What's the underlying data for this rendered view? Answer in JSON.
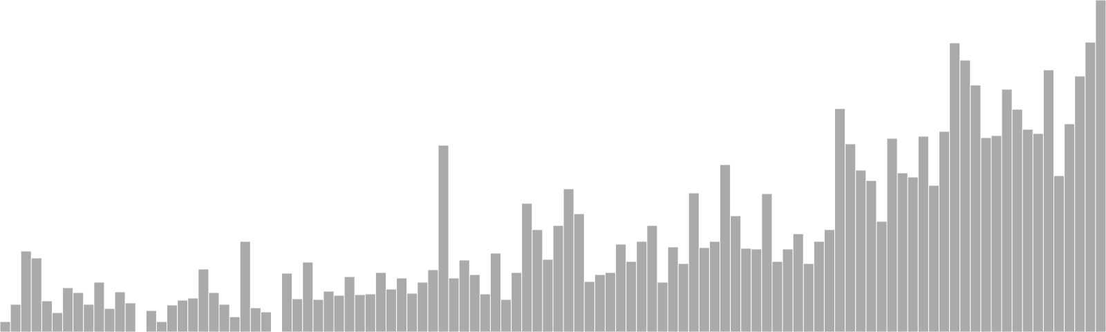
{
  "chart_data": {
    "type": "bar",
    "title": "",
    "xlabel": "",
    "ylabel": "",
    "grid": false,
    "axes_visible": false,
    "ylim": [
      0,
      480
    ],
    "colors": {
      "background": "#ffffff",
      "bar": "#aaaaaa",
      "bar_edge": "#ffffff"
    },
    "values": [
      15,
      40,
      117,
      107,
      45,
      28,
      64,
      57,
      40,
      72,
      34,
      58,
      42,
      0,
      31,
      15,
      39,
      46,
      49,
      91,
      57,
      40,
      22,
      131,
      35,
      29,
      0,
      85,
      48,
      101,
      47,
      59,
      53,
      80,
      54,
      55,
      86,
      62,
      78,
      56,
      72,
      90,
      270,
      78,
      104,
      83,
      55,
      114,
      47,
      86,
      186,
      148,
      105,
      154,
      207,
      171,
      73,
      83,
      86,
      127,
      102,
      131,
      154,
      72,
      123,
      99,
      201,
      122,
      131,
      242,
      168,
      121,
      120,
      200,
      102,
      120,
      142,
      99,
      131,
      148,
      323,
      272,
      234,
      219,
      160,
      280,
      230,
      224,
      283,
      212,
      290,
      418,
      393,
      357,
      281,
      284,
      351,
      322,
      293,
      287,
      379,
      226,
      301,
      370,
      419,
      480
    ]
  }
}
